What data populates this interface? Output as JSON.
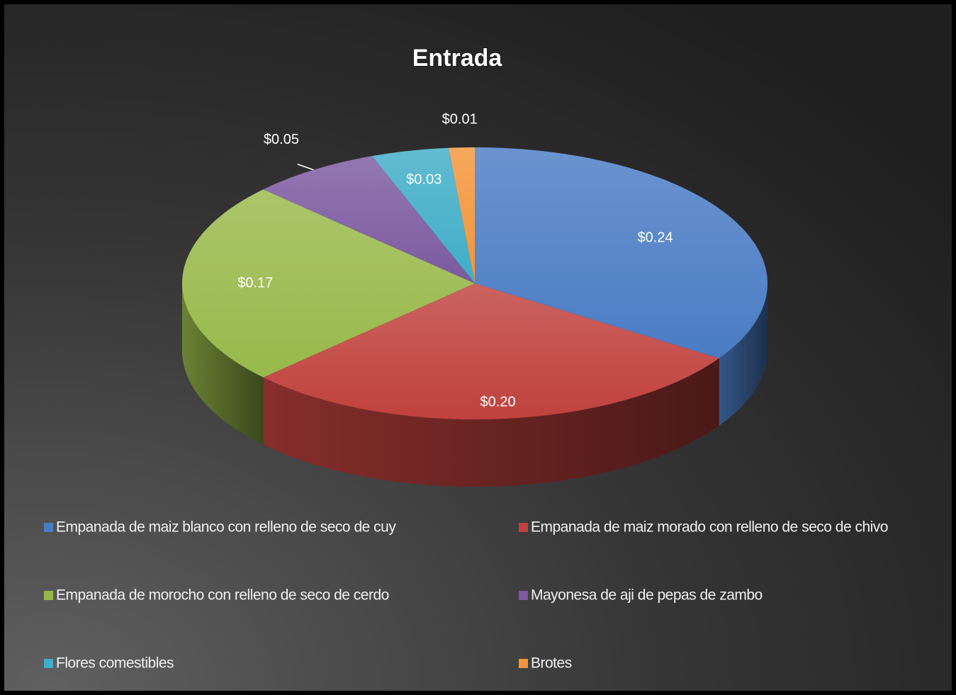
{
  "chart_data": {
    "type": "pie",
    "title": "Entrada",
    "categories": [
      "Empanada de maiz blanco con relleno de seco de cuy",
      "Empanada de maiz morado con relleno de seco de chivo",
      "Empanada de morocho con relleno de seco de cerdo",
      "Mayonesa de aji de pepas de zambo",
      "Flores comestibles",
      "Brotes"
    ],
    "values": [
      0.24,
      0.2,
      0.17,
      0.05,
      0.03,
      0.01
    ],
    "value_labels": [
      "$0.24",
      "$0.20",
      "$0.17",
      "$0.05",
      "$0.03",
      "$0.01"
    ],
    "colors": [
      "#4a7cc4",
      "#c0413d",
      "#98b94a",
      "#7b5aa0",
      "#3fadc7",
      "#f39539"
    ],
    "legend": "bottom"
  }
}
